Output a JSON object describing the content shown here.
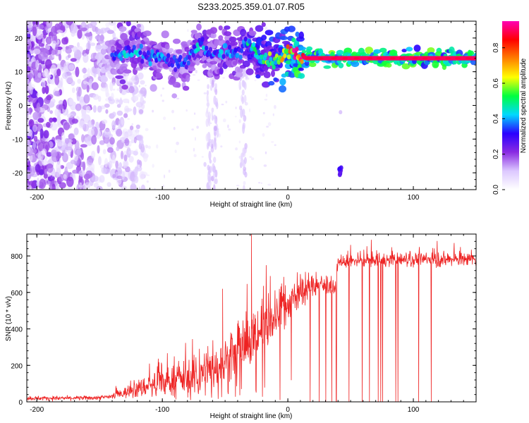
{
  "chart_data": [
    {
      "type": "heatmap",
      "title": "S233.2025.359.01.07.R05",
      "xlabel": "Height of straight line (km)",
      "ylabel": "Frequency (Hz)",
      "xlim": [
        -208,
        150
      ],
      "ylim": [
        -25,
        25
      ],
      "xticks": [
        -200,
        -100,
        0,
        100
      ],
      "yticks": [
        20,
        10,
        0,
        -10,
        -20
      ],
      "colorbar": {
        "label": "Normalized spectral amplitude",
        "range": [
          0,
          0.95
        ],
        "ticks": [
          0.0,
          0.2,
          0.4,
          0.6,
          0.8
        ],
        "colormap": [
          "#ffffff",
          "#dcc8ff",
          "#8a2be2",
          "#2a00ff",
          "#00d8ff",
          "#00ff40",
          "#ffff00",
          "#ff8000",
          "#ff0000",
          "#ff00b4"
        ]
      },
      "ridge": {
        "x": [
          -208,
          -150,
          -140,
          -130,
          -120,
          -110,
          -100,
          -90,
          -80,
          -70,
          -60,
          -50,
          -40,
          -32,
          -25,
          -18,
          -10,
          0,
          5,
          15,
          40,
          80,
          120,
          150
        ],
        "freq_hz": [
          14,
          14,
          15,
          15.5,
          16,
          14.5,
          15,
          12,
          13,
          19,
          14.5,
          16,
          15,
          19,
          16,
          14,
          13,
          16,
          15.5,
          14,
          14,
          14,
          14,
          14
        ],
        "amplitude": [
          0.2,
          0.2,
          0.3,
          0.4,
          0.4,
          0.35,
          0.4,
          0.3,
          0.35,
          0.4,
          0.35,
          0.4,
          0.35,
          0.45,
          0.5,
          0.55,
          0.55,
          0.7,
          0.85,
          0.9,
          0.9,
          0.9,
          0.9,
          0.9
        ]
      }
    },
    {
      "type": "line",
      "xlabel": "Height of straight line (km)",
      "ylabel": "SNR (10 * v/v)",
      "xlim": [
        -208,
        150
      ],
      "ylim": [
        0,
        920
      ],
      "xticks": [
        -200,
        -100,
        0,
        100
      ],
      "yticks": [
        0,
        200,
        400,
        600,
        800
      ],
      "series": [
        {
          "name": "SNR",
          "color": "#ee2222",
          "x": [
            -208,
            -180,
            -150,
            -140,
            -130,
            -120,
            -110,
            -100,
            -90,
            -80,
            -70,
            -60,
            -50,
            -40,
            -30,
            -20,
            -10,
            0,
            10,
            20,
            30,
            38,
            40,
            50,
            60,
            80,
            100,
            120,
            150
          ],
          "mean": [
            20,
            20,
            22,
            30,
            50,
            70,
            90,
            100,
            120,
            130,
            150,
            180,
            220,
            270,
            330,
            400,
            480,
            540,
            600,
            640,
            640,
            620,
            760,
            770,
            775,
            780,
            780,
            780,
            780
          ],
          "noise": [
            10,
            10,
            10,
            15,
            25,
            40,
            55,
            60,
            70,
            80,
            90,
            100,
            110,
            120,
            130,
            120,
            110,
            100,
            80,
            60,
            40,
            30,
            30,
            30,
            30,
            30,
            30,
            30,
            30
          ],
          "spikes": [
            {
              "x": -29,
              "value": 920
            },
            {
              "x": -52,
              "value": 620
            },
            {
              "x": -52,
              "value": 600
            }
          ]
        }
      ]
    }
  ]
}
